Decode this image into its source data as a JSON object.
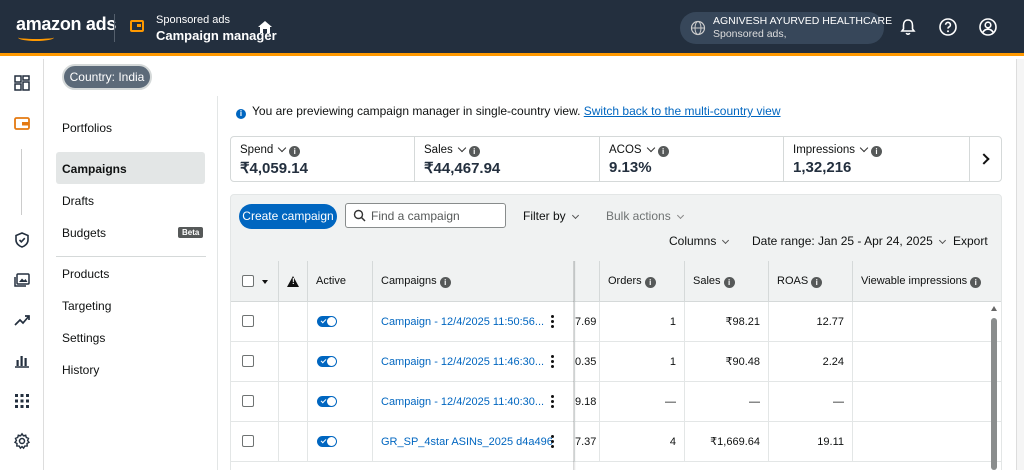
{
  "header": {
    "logo": "amazon ads",
    "product_top": "Sponsored ads",
    "product_main": "Campaign manager",
    "account_name": "AGNIVESH AYURVED HEALTHCARE",
    "account_sub": "Sponsored ads,"
  },
  "country_pill": "Country: India",
  "subnav": {
    "items": [
      {
        "label": "Portfolios"
      },
      {
        "label": "Campaigns"
      },
      {
        "label": "Drafts"
      },
      {
        "label": "Budgets",
        "badge": "Beta"
      },
      {
        "label": "Products"
      },
      {
        "label": "Targeting"
      },
      {
        "label": "Settings"
      },
      {
        "label": "History"
      }
    ]
  },
  "banner": {
    "text": "You are previewing campaign manager in single-country view.",
    "link": "Switch back to the multi-country view"
  },
  "metrics": [
    {
      "label": "Spend",
      "value": "₹4,059.14"
    },
    {
      "label": "Sales",
      "value": "₹44,467.94"
    },
    {
      "label": "ACOS",
      "value": "9.13%"
    },
    {
      "label": "Impressions",
      "value": "1,32,216"
    }
  ],
  "toolbar": {
    "create": "Create campaign",
    "search_placeholder": "Find a campaign",
    "filter": "Filter by",
    "bulk": "Bulk actions",
    "columns": "Columns",
    "date_range": "Date range: Jan 25 - Apr 24, 2025",
    "export": "Export"
  },
  "table": {
    "headers": {
      "active": "Active",
      "campaigns": "Campaigns",
      "orders": "Orders",
      "sales": "Sales",
      "roas": "ROAS",
      "viewable": "Viewable impressions"
    },
    "rows": [
      {
        "campaign": "Campaign - 12/4/2025 11:50:56...",
        "partial": "7.69",
        "orders": "1",
        "sales": "₹98.21",
        "roas": "12.77",
        "viewable": ""
      },
      {
        "campaign": "Campaign - 12/4/2025 11:46:30...",
        "partial": "0.35",
        "orders": "1",
        "sales": "₹90.48",
        "roas": "2.24",
        "viewable": ""
      },
      {
        "campaign": "Campaign - 12/4/2025 11:40:30...",
        "partial": "9.18",
        "orders": "—",
        "sales": "—",
        "roas": "—",
        "viewable": ""
      },
      {
        "campaign": "GR_SP_4star ASINs_2025 d4a496",
        "partial": "7.37",
        "orders": "4",
        "sales": "₹1,669.64",
        "roas": "19.11",
        "viewable": ""
      }
    ]
  }
}
